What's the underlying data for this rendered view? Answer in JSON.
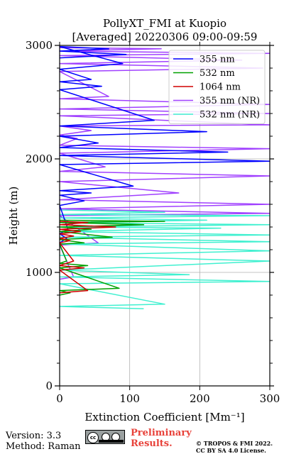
{
  "chart_data": {
    "type": "line",
    "title": "PollyXT_FMI at Kuopio",
    "subtitle": "[Averaged] 20220306 09:00-09:59",
    "xlabel": "Extinction Coefficient [Mm⁻¹]",
    "ylabel": "Height (m)",
    "xlim": [
      0,
      300
    ],
    "ylim": [
      0,
      3000
    ],
    "xticks": [
      "0",
      "100",
      "200",
      "300"
    ],
    "yticks": [
      "0",
      "1000",
      "2000",
      "3000"
    ],
    "grid": true,
    "legend_position": "top-right",
    "series": [
      {
        "name": "355 nm",
        "color": "#0000ff",
        "x": [
          0,
          95,
          0,
          70,
          0,
          90,
          0,
          45,
          0,
          60,
          0,
          135,
          0,
          210,
          0,
          55,
          0,
          240,
          0,
          300,
          0,
          105,
          0,
          45,
          0,
          35,
          0,
          12,
          0,
          10,
          0
        ],
        "y": [
          2890,
          2920,
          2950,
          2970,
          2990,
          2840,
          2790,
          2700,
          2680,
          2640,
          2610,
          2340,
          2290,
          2240,
          2200,
          2140,
          2100,
          2060,
          2030,
          1980,
          1950,
          1760,
          1720,
          1700,
          1680,
          1630,
          1590,
          1380,
          1340,
          1300,
          1260
        ]
      },
      {
        "name": "532 nm",
        "color": "#00a000",
        "x": [
          0,
          150,
          0,
          120,
          0,
          45,
          0,
          75,
          0,
          35,
          0,
          10,
          0,
          40,
          0,
          85,
          0,
          15,
          0
        ],
        "y": [
          1460,
          1450,
          1440,
          1420,
          1400,
          1380,
          1360,
          1310,
          1290,
          1260,
          1250,
          1100,
          1080,
          1060,
          1040,
          860,
          840,
          820,
          800
        ]
      },
      {
        "name": "1064 nm",
        "color": "#d00000",
        "x": [
          0,
          40,
          0,
          80,
          0,
          30,
          0,
          20,
          0,
          15,
          0,
          20,
          0,
          35,
          0,
          40,
          0
        ],
        "y": [
          1450,
          1440,
          1420,
          1400,
          1380,
          1360,
          1340,
          1320,
          1300,
          1280,
          1260,
          1100,
          1060,
          1040,
          1020,
          840,
          820
        ]
      },
      {
        "name": "355 nm (NR)",
        "color": "#a040ff",
        "x": [
          0,
          145,
          0,
          300,
          0,
          260,
          0,
          290,
          0,
          70,
          0,
          300,
          0,
          300,
          0,
          300,
          0,
          45,
          0,
          25,
          0,
          300,
          0,
          65,
          0,
          300,
          0,
          170,
          0,
          300,
          0,
          300,
          0,
          55,
          0,
          20,
          0
        ],
        "y": [
          2980,
          2970,
          2950,
          2930,
          2910,
          2870,
          2840,
          2800,
          2770,
          2550,
          2530,
          2480,
          2440,
          2400,
          2380,
          2300,
          2290,
          2250,
          2210,
          2180,
          2120,
          2090,
          2050,
          1930,
          1890,
          1850,
          1800,
          1700,
          1640,
          1600,
          1560,
          1520,
          1500,
          1260,
          1240,
          960,
          940
        ]
      },
      {
        "name": "532 nm (NR)",
        "color": "#40f0d0",
        "x": [
          0,
          150,
          0,
          300,
          0,
          210,
          0,
          300,
          0,
          230,
          0,
          300,
          0,
          300,
          0,
          300,
          0,
          300,
          0,
          185,
          0,
          300,
          0,
          150,
          0,
          120
        ],
        "y": [
          1550,
          1530,
          1510,
          1500,
          1480,
          1460,
          1440,
          1420,
          1400,
          1390,
          1360,
          1330,
          1310,
          1270,
          1250,
          1190,
          1150,
          1100,
          1020,
          980,
          960,
          920,
          900,
          720,
          700,
          680
        ]
      }
    ]
  },
  "footer": {
    "version": "Version: 3.3",
    "method": "Method: Raman",
    "cc_label": "cc",
    "preliminary_line1": "Preliminary",
    "preliminary_line2": "Results.",
    "copyright_line1": "© TROPOS & FMI 2022.",
    "copyright_line2": "CC BY SA 4.0 License."
  }
}
